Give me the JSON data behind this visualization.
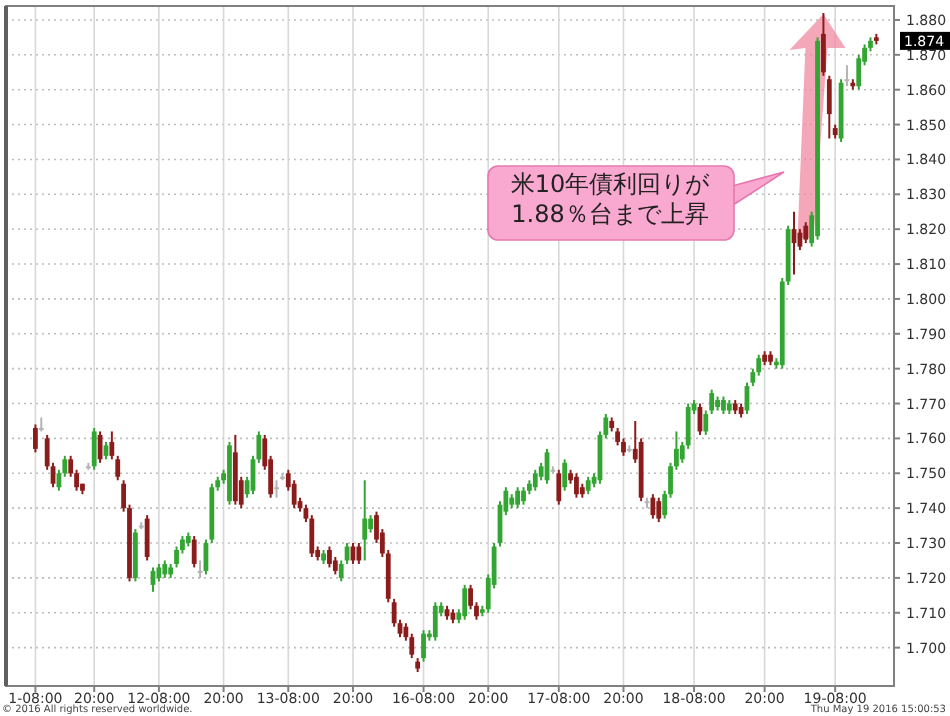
{
  "chart_data": {
    "type": "candlestick",
    "annotations": [
      "米10年債利回りが\n1.88％台まで上昇",
      "© 2016 All rights reserved worldwide.",
      "Thu May 19 2016 15:00:53",
      "1.874"
    ],
    "categories": [
      "1-08:00",
      null,
      null,
      null,
      null,
      null,
      null,
      null,
      null,
      null,
      "20:00",
      null,
      null,
      null,
      null,
      null,
      null,
      null,
      null,
      null,
      null,
      "12-08:00",
      null,
      null,
      null,
      null,
      null,
      null,
      null,
      null,
      null,
      null,
      "20:00",
      null,
      null,
      null,
      null,
      null,
      null,
      null,
      null,
      null,
      null,
      "13-08:00",
      null,
      null,
      null,
      null,
      null,
      null,
      null,
      null,
      null,
      null,
      "20:00",
      null,
      null,
      null,
      null,
      null,
      null,
      null,
      null,
      null,
      null,
      null,
      "16-08:00",
      null,
      null,
      null,
      null,
      null,
      null,
      null,
      null,
      null,
      null,
      "20:00",
      null,
      null,
      null,
      null,
      null,
      null,
      null,
      null,
      null,
      null,
      null,
      "17-08:00",
      null,
      null,
      null,
      null,
      null,
      null,
      null,
      null,
      null,
      null,
      "20:00",
      null,
      null,
      null,
      null,
      null,
      null,
      null,
      null,
      null,
      null,
      null,
      "18-08:00",
      null,
      null,
      null,
      null,
      null,
      null,
      null,
      null,
      null,
      null,
      null,
      "20:00",
      null,
      null,
      null,
      null,
      null,
      null,
      null,
      null,
      null,
      null,
      null,
      "19-08:00",
      null,
      null,
      null,
      null,
      null,
      null,
      null
    ],
    "ylim": [
      1.689,
      1.884
    ],
    "yticks": [
      {
        "value": 1.7,
        "label": "1.700"
      },
      {
        "value": 1.71,
        "label": "1.710"
      },
      {
        "value": 1.72,
        "label": "1.720"
      },
      {
        "value": 1.73,
        "label": "1.730"
      },
      {
        "value": 1.74,
        "label": "1.740"
      },
      {
        "value": 1.75,
        "label": "1.750"
      },
      {
        "value": 1.76,
        "label": "1.760"
      },
      {
        "value": 1.77,
        "label": "1.770"
      },
      {
        "value": 1.78,
        "label": "1.780"
      },
      {
        "value": 1.79,
        "label": "1.790"
      },
      {
        "value": 1.8,
        "label": "1.800"
      },
      {
        "value": 1.81,
        "label": "1.810"
      },
      {
        "value": 1.82,
        "label": "1.820"
      },
      {
        "value": 1.83,
        "label": "1.830"
      },
      {
        "value": 1.84,
        "label": "1.840"
      },
      {
        "value": 1.85,
        "label": "1.850"
      },
      {
        "value": 1.86,
        "label": "1.860"
      },
      {
        "value": 1.87,
        "label": "1.870"
      },
      {
        "value": 1.88,
        "label": "1.880"
      }
    ],
    "grid": true,
    "ohlc": [
      [
        1.763,
        1.764,
        1.756,
        1.757
      ],
      [
        1.763,
        1.766,
        1.762,
        1.763
      ],
      [
        1.76,
        1.761,
        1.751,
        1.752
      ],
      [
        1.752,
        1.753,
        1.746,
        1.747
      ],
      [
        1.746,
        1.751,
        1.745,
        1.75
      ],
      [
        1.75,
        1.755,
        1.749,
        1.754
      ],
      [
        1.754,
        1.755,
        1.749,
        1.75
      ],
      [
        1.75,
        1.751,
        1.745,
        1.746
      ],
      [
        1.747,
        1.747,
        1.744,
        1.745
      ],
      [
        1.752,
        1.753,
        1.751,
        1.752
      ],
      [
        1.752,
        1.763,
        1.751,
        1.762
      ],
      [
        1.761,
        1.762,
        1.753,
        1.754
      ],
      [
        1.755,
        1.759,
        1.754,
        1.758
      ],
      [
        1.759,
        1.762,
        1.754,
        1.755
      ],
      [
        1.754,
        1.755,
        1.748,
        1.749
      ],
      [
        1.747,
        1.748,
        1.739,
        1.74
      ],
      [
        1.74,
        1.741,
        1.719,
        1.72
      ],
      [
        1.72,
        1.734,
        1.719,
        1.733
      ],
      [
        1.735,
        1.736,
        1.734,
        1.735
      ],
      [
        1.737,
        1.738,
        1.725,
        1.726
      ],
      [
        1.718,
        1.723,
        1.716,
        1.722
      ],
      [
        1.72,
        1.724,
        1.719,
        1.723
      ],
      [
        1.721,
        1.725,
        1.72,
        1.724
      ],
      [
        1.721,
        1.724,
        1.72,
        1.723
      ],
      [
        1.724,
        1.729,
        1.723,
        1.728
      ],
      [
        1.728,
        1.732,
        1.727,
        1.731
      ],
      [
        1.73,
        1.733,
        1.729,
        1.732
      ],
      [
        1.731,
        1.732,
        1.723,
        1.724
      ],
      [
        1.722,
        1.725,
        1.72,
        1.722
      ],
      [
        1.722,
        1.731,
        1.721,
        1.73
      ],
      [
        1.731,
        1.747,
        1.73,
        1.746
      ],
      [
        1.746,
        1.749,
        1.745,
        1.748
      ],
      [
        1.748,
        1.751,
        1.747,
        1.75
      ],
      [
        1.742,
        1.759,
        1.741,
        1.758
      ],
      [
        1.756,
        1.761,
        1.741,
        1.742
      ],
      [
        1.748,
        1.749,
        1.74,
        1.741
      ],
      [
        1.744,
        1.749,
        1.743,
        1.748
      ],
      [
        1.745,
        1.755,
        1.744,
        1.754
      ],
      [
        1.754,
        1.762,
        1.753,
        1.761
      ],
      [
        1.76,
        1.761,
        1.751,
        1.752
      ],
      [
        1.754,
        1.755,
        1.743,
        1.744
      ],
      [
        1.746,
        1.748,
        1.743,
        1.746
      ],
      [
        1.749,
        1.75,
        1.748,
        1.749
      ],
      [
        1.75,
        1.751,
        1.745,
        1.746
      ],
      [
        1.747,
        1.748,
        1.74,
        1.741
      ],
      [
        1.742,
        1.743,
        1.739,
        1.74
      ],
      [
        1.74,
        1.741,
        1.736,
        1.737
      ],
      [
        1.737,
        1.738,
        1.726,
        1.727
      ],
      [
        1.728,
        1.729,
        1.725,
        1.726
      ],
      [
        1.725,
        1.728,
        1.724,
        1.727
      ],
      [
        1.728,
        1.729,
        1.723,
        1.724
      ],
      [
        1.725,
        1.726,
        1.721,
        1.722
      ],
      [
        1.72,
        1.725,
        1.719,
        1.724
      ],
      [
        1.725,
        1.73,
        1.724,
        1.729
      ],
      [
        1.729,
        1.73,
        1.724,
        1.725
      ],
      [
        1.729,
        1.73,
        1.724,
        1.725
      ],
      [
        1.731,
        1.748,
        1.725,
        1.737
      ],
      [
        1.734,
        1.738,
        1.733,
        1.737
      ],
      [
        1.738,
        1.739,
        1.73,
        1.731
      ],
      [
        1.733,
        1.734,
        1.726,
        1.727
      ],
      [
        1.727,
        1.728,
        1.713,
        1.714
      ],
      [
        1.713,
        1.714,
        1.706,
        1.707
      ],
      [
        1.707,
        1.708,
        1.703,
        1.704
      ],
      [
        1.706,
        1.707,
        1.702,
        1.703
      ],
      [
        1.703,
        1.704,
        1.697,
        1.698
      ],
      [
        1.696,
        1.697,
        1.693,
        1.694
      ],
      [
        1.697,
        1.705,
        1.696,
        1.704
      ],
      [
        1.703,
        1.705,
        1.702,
        1.704
      ],
      [
        1.703,
        1.713,
        1.702,
        1.712
      ],
      [
        1.71,
        1.713,
        1.709,
        1.712
      ],
      [
        1.711,
        1.712,
        1.708,
        1.709
      ],
      [
        1.71,
        1.711,
        1.707,
        1.708
      ],
      [
        1.708,
        1.711,
        1.707,
        1.71
      ],
      [
        1.709,
        1.718,
        1.708,
        1.717
      ],
      [
        1.717,
        1.718,
        1.711,
        1.712
      ],
      [
        1.712,
        1.713,
        1.708,
        1.709
      ],
      [
        1.71,
        1.712,
        1.709,
        1.711
      ],
      [
        1.711,
        1.721,
        1.71,
        1.72
      ],
      [
        1.718,
        1.73,
        1.717,
        1.729
      ],
      [
        1.73,
        1.742,
        1.729,
        1.741
      ],
      [
        1.739,
        1.746,
        1.738,
        1.745
      ],
      [
        1.741,
        1.744,
        1.74,
        1.743
      ],
      [
        1.741,
        1.746,
        1.74,
        1.745
      ],
      [
        1.742,
        1.746,
        1.741,
        1.745
      ],
      [
        1.745,
        1.748,
        1.744,
        1.747
      ],
      [
        1.746,
        1.751,
        1.745,
        1.75
      ],
      [
        1.749,
        1.753,
        1.748,
        1.752
      ],
      [
        1.748,
        1.757,
        1.747,
        1.756
      ],
      [
        1.751,
        1.752,
        1.75,
        1.751
      ],
      [
        1.75,
        1.751,
        1.741,
        1.742
      ],
      [
        1.746,
        1.754,
        1.745,
        1.753
      ],
      [
        1.75,
        1.751,
        1.747,
        1.748
      ],
      [
        1.749,
        1.75,
        1.743,
        1.744
      ],
      [
        1.746,
        1.747,
        1.743,
        1.744
      ],
      [
        1.745,
        1.749,
        1.744,
        1.748
      ],
      [
        1.747,
        1.75,
        1.746,
        1.749
      ],
      [
        1.748,
        1.762,
        1.747,
        1.761
      ],
      [
        1.761,
        1.767,
        1.76,
        1.766
      ],
      [
        1.765,
        1.766,
        1.762,
        1.763
      ],
      [
        1.762,
        1.763,
        1.758,
        1.759
      ],
      [
        1.759,
        1.76,
        1.755,
        1.756
      ],
      [
        1.757,
        1.758,
        1.756,
        1.757
      ],
      [
        1.757,
        1.765,
        1.753,
        1.754
      ],
      [
        1.759,
        1.76,
        1.742,
        1.743
      ],
      [
        1.742,
        1.743,
        1.74,
        1.742
      ],
      [
        1.743,
        1.744,
        1.737,
        1.738
      ],
      [
        1.742,
        1.743,
        1.736,
        1.737
      ],
      [
        1.738,
        1.745,
        1.737,
        1.744
      ],
      [
        1.744,
        1.753,
        1.743,
        1.752
      ],
      [
        1.752,
        1.762,
        1.751,
        1.757
      ],
      [
        1.754,
        1.759,
        1.753,
        1.758
      ],
      [
        1.758,
        1.77,
        1.757,
        1.769
      ],
      [
        1.768,
        1.771,
        1.767,
        1.77
      ],
      [
        1.769,
        1.77,
        1.761,
        1.762
      ],
      [
        1.762,
        1.768,
        1.761,
        1.767
      ],
      [
        1.768,
        1.774,
        1.767,
        1.773
      ],
      [
        1.769,
        1.772,
        1.768,
        1.771
      ],
      [
        1.768,
        1.772,
        1.767,
        1.771
      ],
      [
        1.768,
        1.771,
        1.767,
        1.77
      ],
      [
        1.77,
        1.771,
        1.767,
        1.768
      ],
      [
        1.769,
        1.77,
        1.766,
        1.767
      ],
      [
        1.768,
        1.776,
        1.767,
        1.775
      ],
      [
        1.776,
        1.78,
        1.775,
        1.779
      ],
      [
        1.779,
        1.784,
        1.778,
        1.783
      ],
      [
        1.784,
        1.785,
        1.781,
        1.782
      ],
      [
        1.784,
        1.785,
        1.781,
        1.782
      ],
      [
        1.781,
        1.783,
        1.78,
        1.782
      ],
      [
        1.781,
        1.806,
        1.78,
        1.805
      ],
      [
        1.805,
        1.821,
        1.804,
        1.82
      ],
      [
        1.82,
        1.825,
        1.807,
        1.816
      ],
      [
        1.819,
        1.82,
        1.814,
        1.815
      ],
      [
        1.821,
        1.822,
        1.816,
        1.817
      ],
      [
        1.816,
        1.825,
        1.815,
        1.824
      ],
      [
        1.818,
        1.875,
        1.817,
        1.874
      ],
      [
        1.876,
        1.882,
        1.864,
        1.865
      ],
      [
        1.863,
        1.864,
        1.846,
        1.853
      ],
      [
        1.849,
        1.85,
        1.846,
        1.847
      ],
      [
        1.846,
        1.863,
        1.845,
        1.862
      ],
      [
        1.863,
        1.867,
        1.861,
        1.863
      ],
      [
        1.862,
        1.863,
        1.86,
        1.861
      ],
      [
        1.861,
        1.87,
        1.86,
        1.869
      ],
      [
        1.868,
        1.873,
        1.867,
        1.872
      ],
      [
        1.872,
        1.875,
        1.871,
        1.874
      ],
      [
        1.875,
        1.876,
        1.873,
        1.874
      ]
    ],
    "colors": [
      "#8b1c1c",
      "#b4b4b4",
      "#8b1c1c",
      "#8b1c1c",
      "#33a532",
      "#33a532",
      "#8b1c1c",
      "#8b1c1c",
      "#8b1c1c",
      "#b4b4b4",
      "#33a532",
      "#8b1c1c",
      "#33a532",
      "#8b1c1c",
      "#8b1c1c",
      "#8b1c1c",
      "#8b1c1c",
      "#33a532",
      "#b4b4b4",
      "#8b1c1c",
      "#33a532",
      "#33a532",
      "#33a532",
      "#33a532",
      "#33a532",
      "#33a532",
      "#33a532",
      "#8b1c1c",
      "#b4b4b4",
      "#33a532",
      "#33a532",
      "#33a532",
      "#33a532",
      "#33a532",
      "#8b1c1c",
      "#8b1c1c",
      "#33a532",
      "#33a532",
      "#33a532",
      "#8b1c1c",
      "#8b1c1c",
      "#b4b4b4",
      "#b4b4b4",
      "#8b1c1c",
      "#8b1c1c",
      "#8b1c1c",
      "#8b1c1c",
      "#8b1c1c",
      "#8b1c1c",
      "#33a532",
      "#8b1c1c",
      "#8b1c1c",
      "#33a532",
      "#33a532",
      "#8b1c1c",
      "#8b1c1c",
      "#33a532",
      "#33a532",
      "#8b1c1c",
      "#8b1c1c",
      "#8b1c1c",
      "#8b1c1c",
      "#8b1c1c",
      "#8b1c1c",
      "#8b1c1c",
      "#8b1c1c",
      "#33a532",
      "#33a532",
      "#33a532",
      "#33a532",
      "#8b1c1c",
      "#8b1c1c",
      "#33a532",
      "#33a532",
      "#8b1c1c",
      "#8b1c1c",
      "#33a532",
      "#33a532",
      "#33a532",
      "#33a532",
      "#33a532",
      "#33a532",
      "#33a532",
      "#33a532",
      "#33a532",
      "#33a532",
      "#33a532",
      "#33a532",
      "#b4b4b4",
      "#8b1c1c",
      "#33a532",
      "#8b1c1c",
      "#8b1c1c",
      "#8b1c1c",
      "#33a532",
      "#33a532",
      "#33a532",
      "#33a532",
      "#8b1c1c",
      "#8b1c1c",
      "#8b1c1c",
      "#b4b4b4",
      "#8b1c1c",
      "#8b1c1c",
      "#b4b4b4",
      "#8b1c1c",
      "#8b1c1c",
      "#33a532",
      "#33a532",
      "#33a532",
      "#33a532",
      "#33a532",
      "#33a532",
      "#8b1c1c",
      "#33a532",
      "#33a532",
      "#33a532",
      "#33a532",
      "#33a532",
      "#8b1c1c",
      "#8b1c1c",
      "#33a532",
      "#33a532",
      "#33a532",
      "#8b1c1c",
      "#8b1c1c",
      "#33a532",
      "#33a532",
      "#33a532",
      "#8b1c1c",
      "#8b1c1c",
      "#8b1c1c",
      "#33a532",
      "#33a532",
      "#8b1c1c",
      "#8b1c1c",
      "#8b1c1c",
      "#33a532",
      "#b4b4b4",
      "#8b1c1c",
      "#33a532",
      "#33a532",
      "#33a532",
      "#8b1c1c"
    ]
  }
}
